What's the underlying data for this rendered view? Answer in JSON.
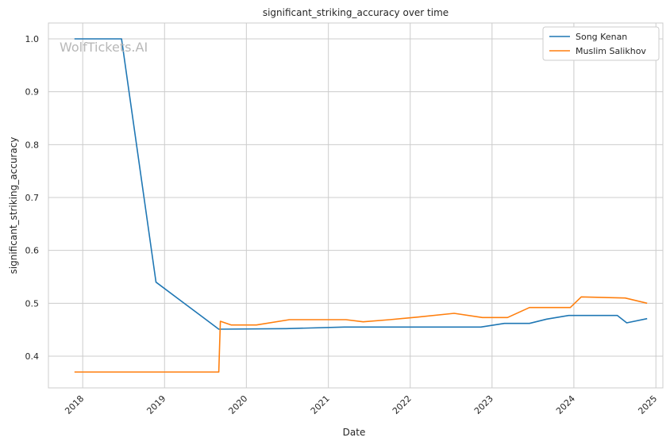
{
  "chart_data": {
    "type": "line",
    "title": "significant_striking_accuracy over time",
    "xlabel": "Date",
    "ylabel": "significant_striking_accuracy",
    "watermark": "WolfTickets.AI",
    "xlim": [
      "2017-08-01",
      "2025-02-01"
    ],
    "ylim": [
      0.34,
      1.03
    ],
    "x_ticks": [
      "2018",
      "2019",
      "2020",
      "2021",
      "2022",
      "2023",
      "2024",
      "2025"
    ],
    "y_ticks": [
      "0.4",
      "0.5",
      "0.6",
      "0.7",
      "0.8",
      "0.9",
      "1.0"
    ],
    "grid": true,
    "legend_position": "top-right",
    "series": [
      {
        "name": "Song Kenan",
        "color": "#1f77b4",
        "points": [
          [
            "2017-11-25",
            1.0
          ],
          [
            "2018-06-23",
            1.0
          ],
          [
            "2018-11-24",
            0.54
          ],
          [
            "2019-08-31",
            0.451
          ],
          [
            "2020-06-27",
            0.452
          ],
          [
            "2021-03-13",
            0.455
          ],
          [
            "2022-11-12",
            0.455
          ],
          [
            "2023-02-25",
            0.462
          ],
          [
            "2023-06-17",
            0.462
          ],
          [
            "2023-09-02",
            0.47
          ],
          [
            "2023-12-09",
            0.477
          ],
          [
            "2024-07-13",
            0.477
          ],
          [
            "2024-08-24",
            0.463
          ],
          [
            "2024-11-23",
            0.471
          ]
        ]
      },
      {
        "name": "Muslim Salikhov",
        "color": "#ff7f0e",
        "points": [
          [
            "2017-11-25",
            0.37
          ],
          [
            "2019-08-31",
            0.37
          ],
          [
            "2019-09-07",
            0.466
          ],
          [
            "2019-10-26",
            0.459
          ],
          [
            "2020-02-15",
            0.459
          ],
          [
            "2020-07-11",
            0.469
          ],
          [
            "2021-03-20",
            0.469
          ],
          [
            "2021-06-05",
            0.465
          ],
          [
            "2021-10-02",
            0.469
          ],
          [
            "2022-02-05",
            0.474
          ],
          [
            "2022-07-16",
            0.481
          ],
          [
            "2022-11-19",
            0.473
          ],
          [
            "2023-03-11",
            0.473
          ],
          [
            "2023-06-17",
            0.492
          ],
          [
            "2023-12-16",
            0.492
          ],
          [
            "2024-02-03",
            0.512
          ],
          [
            "2024-08-17",
            0.51
          ],
          [
            "2024-11-23",
            0.5
          ]
        ]
      }
    ]
  }
}
